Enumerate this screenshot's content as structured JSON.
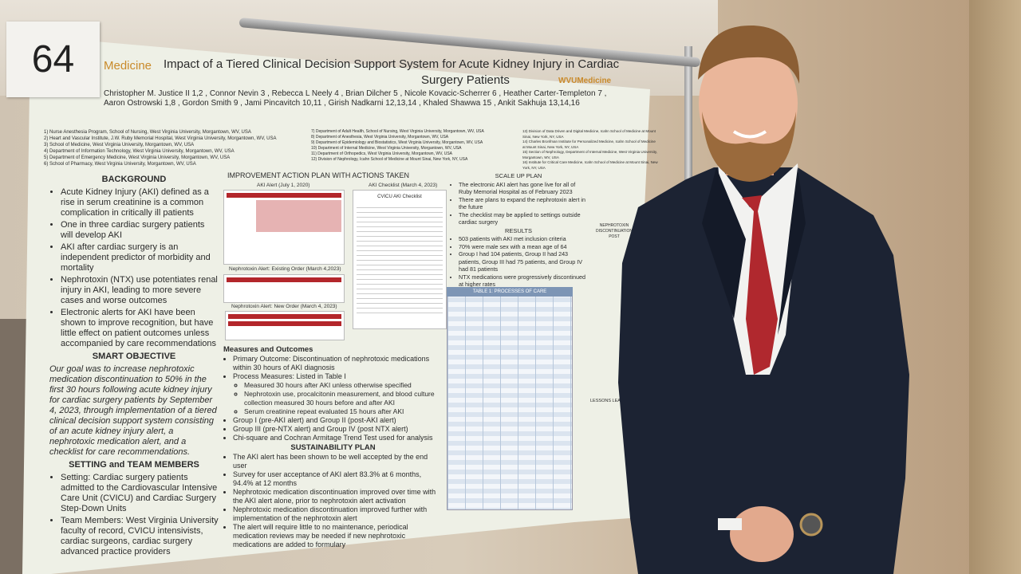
{
  "sign_number": "64",
  "poster": {
    "logo_left": "Medicine",
    "logo_right": "WVUMedicine",
    "title": "Impact of a Tiered Clinical Decision Support System for Acute Kidney Injury in Cardiac",
    "title_line2": "Surgery Patients",
    "authors_line1": "Christopher M. Justice II 1,2 , Connor Nevin 3 , Rebecca L Neely 4 , Brian Dilcher 5 , Nicole Kovacic-Scherrer 6 , Heather Carter-Templeton 7 ,",
    "authors_line2": "Aaron Ostrowski 1,8 , Gordon Smith 9 , Jami Pincavitch 10,11 , Girish Nadkarni 12,13,14 , Khaled Shawwa 15 , Ankit Sakhuja 13,14,16",
    "affiliations": [
      "1) Nurse Anesthesia Program, School of Nursing, West Virginia University, Morgantown, WV, USA",
      "2) Heart and Vascular Institute, J.W. Ruby Memorial Hospital, West Virginia University, Morgantown, WV, USA",
      "3) School of Medicine, West Virginia University, Morgantown, WV, USA",
      "4) Department of Information Technology, West Virginia University, Morgantown, WV, USA",
      "5) Department of Emergency Medicine, West Virginia University, Morgantown, WV, USA",
      "6) School of Pharmacy, West Virginia University, Morgantown, WV, USA"
    ],
    "affiliations2": [
      "7) Department of Adult Health, School of Nursing, West Virginia University, Morgantown, WV, USA",
      "8) Department of Anesthesia, West Virginia University, Morgantown, WV, USA",
      "9) Department of Epidemiology and Biostatistics, West Virginia University, Morgantown, WV, USA",
      "10) Department of Internal Medicine, West Virginia University, Morgantown, WV, USA",
      "11) Department of Orthopedics, West Virginia University, Morgantown, WV, USA",
      "12) Division of Nephrology, Icahn School of Medicine at Mount Sinai, New York, NY, USA"
    ],
    "affiliations3": [
      "13) Division of Data Driven and Digital Medicine, Icahn School of Medicine at Mount Sinai, New York, NY, USA",
      "14) Charles Bronfman Institute for Personalized Medicine, Icahn School of Medicine at Mount Sinai, New York, NY, USA",
      "15) Section of Nephrology, Department of Internal Medicine, West Virginia University, Morgantown, WV, USA",
      "16) Institute for Critical Care Medicine, Icahn School of Medicine at Mount Sinai, New York, NY, USA"
    ],
    "background": {
      "heading": "BACKGROUND",
      "items": [
        "Acute Kidney Injury (AKI) defined as a rise in serum creatinine is a common complication in critically ill patients",
        "One in three cardiac surgery patients will develop AKI",
        "AKI after cardiac surgery is an independent predictor of morbidity and mortality",
        "Nephrotoxin (NTX) use potentiates renal injury in AKI, leading to more severe cases and worse outcomes",
        "Electronic alerts for AKI have been shown to improve recognition, but have little effect on patient outcomes unless accompanied by care recommendations"
      ]
    },
    "smart_objective": {
      "heading": "SMART OBJECTIVE",
      "text": "Our goal was to increase nephrotoxic medication discontinuation to 50% in the first 30 hours following acute kidney injury for cardiac surgery patients by September 4, 2023, through implementation of a tiered clinical decision support system consisting of an acute kidney injury alert, a nephrotoxic medication alert, and a checklist for care recommendations."
    },
    "setting": {
      "heading": "SETTING and TEAM MEMBERS",
      "items": [
        "Setting: Cardiac surgery patients admitted to the Cardiovascular Intensive Care Unit (CVICU) and Cardiac Surgery Step-Down Units",
        "Team Members: West Virginia University faculty of record, CVICU intensivists, cardiac surgeons, cardiac surgery advanced practice providers"
      ]
    },
    "improvement": {
      "heading": "IMPROVEMENT ACTION PLAN WITH ACTIONS TAKEN",
      "fig1": "AKI Alert (July 1, 2020)",
      "fig2": "Nephrotoxin Alert: Existing Order (March 4,2023)",
      "fig3": "Nephrotoxin Alert: New Order (March 4, 2023)",
      "checklist_caption": "AKI Checklist (March 4, 2023)",
      "checklist_title": "CVICU AKI Checklist"
    },
    "measures": {
      "heading": "Measures and Outcomes",
      "items": [
        "Primary Outcome: Discontinuation of nephrotoxic medications within 30 hours of AKI diagnosis",
        "Process Measures: Listed in Table I"
      ],
      "subitems": [
        "Measured 30 hours after AKI unless otherwise specified",
        "Nephrotoxin use, procalcitonin measurement, and blood culture collection measured 30 hours before and after AKI",
        "Serum creatinine repeat evaluated 15 hours after AKI"
      ],
      "items2": [
        "Group I (pre-AKI alert) and Group II (post-AKI alert)",
        "Group III (pre-NTX alert) and Group IV (post NTX alert)",
        "Chi-square and Cochran Armitage Trend Test used for analysis"
      ]
    },
    "sustainability": {
      "heading": "SUSTAINABILITY PLAN",
      "items": [
        "The AKI alert has been shown to be well accepted by the end user",
        "Survey for user acceptance of AKI alert 83.3% at 6 months, 94.4% at 12 months",
        "Nephrotoxic medication discontinuation improved over time with the AKI alert alone, prior to nephrotoxin alert activation",
        "Nephrotoxic medication discontinuation improved further with implementation of the nephrotoxin alert",
        "The alert will require little to no maintenance, periodical medication reviews may be needed if new nephrotoxic medications are added to formulary"
      ]
    },
    "scale_up": {
      "heading": "SCALE UP PLAN",
      "items": [
        "The electronic AKI alert has gone live for all of Ruby Memorial Hospital as of February 2023",
        "There are plans to expand the nephrotoxin alert in the future",
        "The checklist may be applied to settings outside cardiac surgery"
      ]
    },
    "results": {
      "heading": "RESULTS",
      "items": [
        "503 patients with AKI met inclusion criteria",
        "70% were male sex with a mean age of 64",
        "Group I had 104 patients, Group II had 243 patients, Group III had 75 patients, and Group IV had 81 patients",
        "NTX medications were progressively discontinued at higher rates"
      ],
      "table_title": "TABLE 1: PROCESSES OF CARE"
    },
    "side_chart_title": "NEPHROTOXIN DISCONTINUATION POST",
    "lessons_heading": "LESSONS LEARNED"
  },
  "colors": {
    "suit": "#1c2333",
    "tie": "#b0282e",
    "poster_bg": "#eef0e6",
    "accent": "#c98a2a"
  }
}
